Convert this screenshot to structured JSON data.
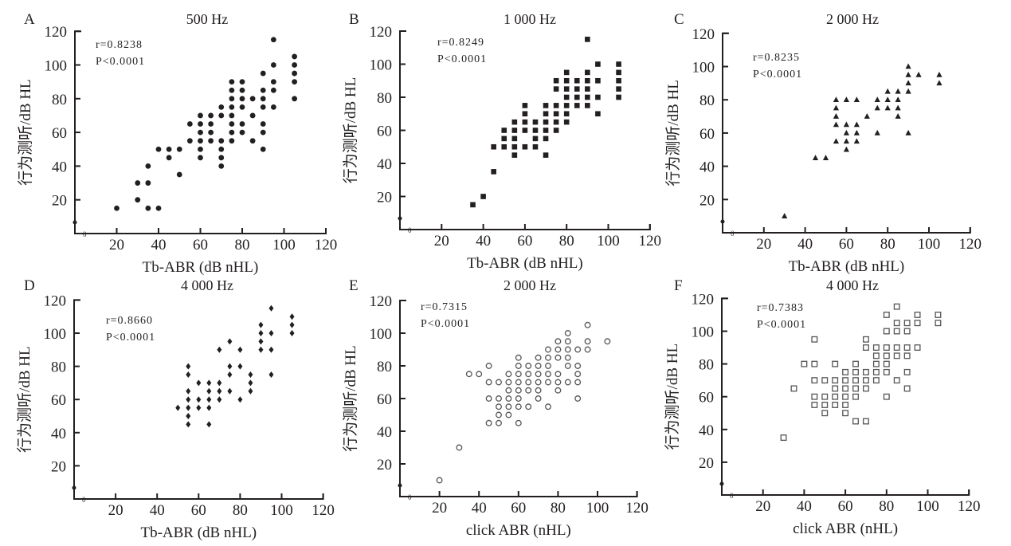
{
  "chart_data": [
    {
      "type": "scatter",
      "panel": "A",
      "title": "500 Hz",
      "xlabel": "Tb-ABR (dB nHL)",
      "ylabel": "行为测听/dB HL",
      "stat_r": "r=0.8238",
      "stat_p": "P<0.0001",
      "marker": "filled-circle",
      "color": "#231f20",
      "xlim": [
        0,
        120
      ],
      "ylim": [
        0,
        120
      ],
      "xticks": [
        20,
        40,
        60,
        80,
        100,
        120
      ],
      "yticks": [
        20,
        40,
        60,
        80,
        100,
        120
      ],
      "points": [
        [
          20,
          15
        ],
        [
          30,
          30
        ],
        [
          30,
          20
        ],
        [
          35,
          40
        ],
        [
          35,
          30
        ],
        [
          35,
          15
        ],
        [
          40,
          50
        ],
        [
          40,
          15
        ],
        [
          45,
          50
        ],
        [
          45,
          45
        ],
        [
          50,
          50
        ],
        [
          50,
          35
        ],
        [
          55,
          65
        ],
        [
          55,
          55
        ],
        [
          60,
          70
        ],
        [
          60,
          65
        ],
        [
          60,
          60
        ],
        [
          60,
          55
        ],
        [
          60,
          50
        ],
        [
          60,
          45
        ],
        [
          65,
          70
        ],
        [
          65,
          65
        ],
        [
          65,
          60
        ],
        [
          65,
          55
        ],
        [
          70,
          75
        ],
        [
          70,
          70
        ],
        [
          70,
          55
        ],
        [
          70,
          50
        ],
        [
          70,
          45
        ],
        [
          70,
          40
        ],
        [
          75,
          90
        ],
        [
          75,
          85
        ],
        [
          75,
          80
        ],
        [
          75,
          75
        ],
        [
          75,
          70
        ],
        [
          75,
          65
        ],
        [
          75,
          60
        ],
        [
          75,
          55
        ],
        [
          80,
          90
        ],
        [
          80,
          85
        ],
        [
          80,
          80
        ],
        [
          80,
          75
        ],
        [
          80,
          65
        ],
        [
          80,
          60
        ],
        [
          85,
          80
        ],
        [
          85,
          70
        ],
        [
          85,
          55
        ],
        [
          90,
          95
        ],
        [
          90,
          85
        ],
        [
          90,
          80
        ],
        [
          90,
          75
        ],
        [
          90,
          65
        ],
        [
          90,
          60
        ],
        [
          90,
          50
        ],
        [
          95,
          115
        ],
        [
          95,
          100
        ],
        [
          95,
          90
        ],
        [
          95,
          85
        ],
        [
          95,
          75
        ],
        [
          105,
          105
        ],
        [
          105,
          100
        ],
        [
          105,
          95
        ],
        [
          105,
          90
        ],
        [
          105,
          80
        ]
      ]
    },
    {
      "type": "scatter",
      "panel": "B",
      "title": "1 000 Hz",
      "xlabel": "Tb-ABR (dB nHL)",
      "ylabel": "行为测听/dB HL",
      "stat_r": "r=0.8249",
      "stat_p": "P<0.0001",
      "marker": "filled-square",
      "color": "#231f20",
      "xlim": [
        0,
        120
      ],
      "ylim": [
        0,
        120
      ],
      "xticks": [
        20,
        40,
        60,
        80,
        100,
        120
      ],
      "yticks": [
        20,
        40,
        60,
        80,
        100,
        120
      ],
      "points": [
        [
          35,
          15
        ],
        [
          40,
          20
        ],
        [
          45,
          35
        ],
        [
          45,
          50
        ],
        [
          50,
          60
        ],
        [
          50,
          55
        ],
        [
          50,
          50
        ],
        [
          55,
          65
        ],
        [
          55,
          60
        ],
        [
          55,
          55
        ],
        [
          55,
          50
        ],
        [
          55,
          45
        ],
        [
          60,
          75
        ],
        [
          60,
          70
        ],
        [
          60,
          65
        ],
        [
          60,
          60
        ],
        [
          60,
          50
        ],
        [
          65,
          65
        ],
        [
          65,
          60
        ],
        [
          65,
          55
        ],
        [
          65,
          50
        ],
        [
          70,
          75
        ],
        [
          70,
          70
        ],
        [
          70,
          65
        ],
        [
          70,
          60
        ],
        [
          70,
          55
        ],
        [
          70,
          45
        ],
        [
          75,
          90
        ],
        [
          75,
          85
        ],
        [
          75,
          75
        ],
        [
          75,
          70
        ],
        [
          75,
          65
        ],
        [
          75,
          60
        ],
        [
          80,
          95
        ],
        [
          80,
          90
        ],
        [
          80,
          85
        ],
        [
          80,
          80
        ],
        [
          80,
          75
        ],
        [
          80,
          70
        ],
        [
          80,
          65
        ],
        [
          85,
          90
        ],
        [
          85,
          85
        ],
        [
          85,
          80
        ],
        [
          85,
          75
        ],
        [
          90,
          115
        ],
        [
          90,
          95
        ],
        [
          90,
          90
        ],
        [
          90,
          85
        ],
        [
          90,
          80
        ],
        [
          90,
          75
        ],
        [
          95,
          100
        ],
        [
          95,
          90
        ],
        [
          95,
          80
        ],
        [
          95,
          70
        ],
        [
          105,
          100
        ],
        [
          105,
          95
        ],
        [
          105,
          90
        ],
        [
          105,
          85
        ],
        [
          105,
          80
        ]
      ]
    },
    {
      "type": "scatter",
      "panel": "C",
      "title": "2 000 Hz",
      "xlabel": "Tb-ABR (dB nHL)",
      "ylabel": "行为测听/dB HL",
      "stat_r": "r=0.8235",
      "stat_p": "P<0.0001",
      "marker": "filled-triangle",
      "color": "#231f20",
      "xlim": [
        0,
        120
      ],
      "ylim": [
        0,
        120
      ],
      "xticks": [
        20,
        40,
        60,
        80,
        100,
        120
      ],
      "yticks": [
        20,
        40,
        60,
        80,
        100,
        120
      ],
      "points": [
        [
          30,
          10
        ],
        [
          45,
          45
        ],
        [
          50,
          45
        ],
        [
          55,
          80
        ],
        [
          55,
          75
        ],
        [
          55,
          70
        ],
        [
          55,
          65
        ],
        [
          55,
          55
        ],
        [
          60,
          80
        ],
        [
          60,
          65
        ],
        [
          60,
          60
        ],
        [
          60,
          55
        ],
        [
          60,
          50
        ],
        [
          65,
          80
        ],
        [
          65,
          65
        ],
        [
          65,
          60
        ],
        [
          65,
          55
        ],
        [
          70,
          70
        ],
        [
          75,
          80
        ],
        [
          75,
          75
        ],
        [
          75,
          60
        ],
        [
          80,
          85
        ],
        [
          80,
          80
        ],
        [
          80,
          75
        ],
        [
          85,
          85
        ],
        [
          85,
          80
        ],
        [
          85,
          75
        ],
        [
          85,
          70
        ],
        [
          90,
          100
        ],
        [
          90,
          95
        ],
        [
          90,
          90
        ],
        [
          90,
          85
        ],
        [
          90,
          60
        ],
        [
          95,
          95
        ],
        [
          105,
          95
        ],
        [
          105,
          90
        ]
      ]
    },
    {
      "type": "scatter",
      "panel": "D",
      "title": "4 000 Hz",
      "xlabel": "Tb-ABR (dB nHL)",
      "ylabel": "行为测听/dB HL",
      "stat_r": "r=0.8660",
      "stat_p": "P<0.0001",
      "marker": "filled-diamond",
      "color": "#231f20",
      "xlim": [
        0,
        120
      ],
      "ylim": [
        0,
        120
      ],
      "xticks": [
        20,
        40,
        60,
        80,
        100,
        120
      ],
      "yticks": [
        20,
        40,
        60,
        80,
        100,
        120
      ],
      "points": [
        [
          50,
          55
        ],
        [
          55,
          80
        ],
        [
          55,
          75
        ],
        [
          55,
          65
        ],
        [
          55,
          60
        ],
        [
          55,
          55
        ],
        [
          55,
          50
        ],
        [
          55,
          45
        ],
        [
          60,
          70
        ],
        [
          60,
          60
        ],
        [
          60,
          55
        ],
        [
          65,
          70
        ],
        [
          65,
          65
        ],
        [
          65,
          60
        ],
        [
          65,
          55
        ],
        [
          65,
          45
        ],
        [
          70,
          90
        ],
        [
          70,
          70
        ],
        [
          70,
          65
        ],
        [
          70,
          60
        ],
        [
          75,
          95
        ],
        [
          75,
          80
        ],
        [
          75,
          75
        ],
        [
          75,
          65
        ],
        [
          80,
          90
        ],
        [
          80,
          80
        ],
        [
          80,
          60
        ],
        [
          85,
          75
        ],
        [
          85,
          70
        ],
        [
          85,
          65
        ],
        [
          90,
          105
        ],
        [
          90,
          100
        ],
        [
          90,
          95
        ],
        [
          90,
          90
        ],
        [
          95,
          115
        ],
        [
          95,
          100
        ],
        [
          95,
          90
        ],
        [
          95,
          75
        ],
        [
          105,
          110
        ],
        [
          105,
          105
        ],
        [
          105,
          100
        ]
      ]
    },
    {
      "type": "scatter",
      "panel": "E",
      "title": "2 000 Hz",
      "xlabel": "click ABR (nHL)",
      "ylabel": "行为测听/dB HL",
      "stat_r": "r=0.7315",
      "stat_p": "P<0.0001",
      "marker": "open-circle",
      "color": "#555555",
      "xlim": [
        0,
        120
      ],
      "ylim": [
        0,
        120
      ],
      "xticks": [
        20,
        40,
        60,
        80,
        100,
        120
      ],
      "yticks": [
        20,
        40,
        60,
        80,
        100,
        120
      ],
      "points": [
        [
          20,
          10
        ],
        [
          30,
          30
        ],
        [
          35,
          75
        ],
        [
          40,
          75
        ],
        [
          45,
          80
        ],
        [
          45,
          70
        ],
        [
          45,
          60
        ],
        [
          45,
          45
        ],
        [
          50,
          70
        ],
        [
          50,
          60
        ],
        [
          50,
          55
        ],
        [
          50,
          50
        ],
        [
          50,
          45
        ],
        [
          55,
          75
        ],
        [
          55,
          70
        ],
        [
          55,
          65
        ],
        [
          55,
          60
        ],
        [
          55,
          55
        ],
        [
          55,
          50
        ],
        [
          60,
          85
        ],
        [
          60,
          80
        ],
        [
          60,
          75
        ],
        [
          60,
          70
        ],
        [
          60,
          65
        ],
        [
          60,
          60
        ],
        [
          60,
          55
        ],
        [
          60,
          45
        ],
        [
          65,
          80
        ],
        [
          65,
          75
        ],
        [
          65,
          70
        ],
        [
          65,
          65
        ],
        [
          65,
          55
        ],
        [
          70,
          85
        ],
        [
          70,
          80
        ],
        [
          70,
          75
        ],
        [
          70,
          70
        ],
        [
          70,
          65
        ],
        [
          70,
          60
        ],
        [
          75,
          90
        ],
        [
          75,
          85
        ],
        [
          75,
          80
        ],
        [
          75,
          75
        ],
        [
          75,
          70
        ],
        [
          75,
          55
        ],
        [
          80,
          95
        ],
        [
          80,
          90
        ],
        [
          80,
          85
        ],
        [
          80,
          75
        ],
        [
          80,
          70
        ],
        [
          80,
          65
        ],
        [
          85,
          100
        ],
        [
          85,
          95
        ],
        [
          85,
          90
        ],
        [
          85,
          85
        ],
        [
          85,
          80
        ],
        [
          85,
          70
        ],
        [
          90,
          90
        ],
        [
          90,
          80
        ],
        [
          90,
          75
        ],
        [
          90,
          70
        ],
        [
          90,
          60
        ],
        [
          95,
          105
        ],
        [
          95,
          95
        ],
        [
          95,
          90
        ],
        [
          105,
          95
        ]
      ]
    },
    {
      "type": "scatter",
      "panel": "F",
      "title": "4 000 Hz",
      "xlabel": "click ABR (nHL)",
      "ylabel": "行为测听/dB HL",
      "stat_r": "r=0.7383",
      "stat_p": "P<0.0001",
      "marker": "open-square",
      "color": "#555555",
      "xlim": [
        0,
        120
      ],
      "ylim": [
        0,
        120
      ],
      "xticks": [
        20,
        40,
        60,
        80,
        100,
        120
      ],
      "yticks": [
        20,
        40,
        60,
        80,
        100,
        120
      ],
      "points": [
        [
          30,
          35
        ],
        [
          35,
          65
        ],
        [
          40,
          80
        ],
        [
          45,
          95
        ],
        [
          45,
          80
        ],
        [
          45,
          70
        ],
        [
          45,
          60
        ],
        [
          45,
          55
        ],
        [
          50,
          70
        ],
        [
          50,
          60
        ],
        [
          50,
          55
        ],
        [
          50,
          50
        ],
        [
          55,
          80
        ],
        [
          55,
          70
        ],
        [
          55,
          65
        ],
        [
          55,
          60
        ],
        [
          55,
          55
        ],
        [
          60,
          75
        ],
        [
          60,
          70
        ],
        [
          60,
          65
        ],
        [
          60,
          60
        ],
        [
          60,
          55
        ],
        [
          60,
          50
        ],
        [
          65,
          80
        ],
        [
          65,
          75
        ],
        [
          65,
          70
        ],
        [
          65,
          65
        ],
        [
          65,
          60
        ],
        [
          65,
          45
        ],
        [
          70,
          95
        ],
        [
          70,
          90
        ],
        [
          70,
          75
        ],
        [
          70,
          70
        ],
        [
          70,
          65
        ],
        [
          70,
          45
        ],
        [
          75,
          90
        ],
        [
          75,
          85
        ],
        [
          75,
          80
        ],
        [
          75,
          75
        ],
        [
          75,
          70
        ],
        [
          80,
          110
        ],
        [
          80,
          100
        ],
        [
          80,
          90
        ],
        [
          80,
          85
        ],
        [
          80,
          80
        ],
        [
          80,
          75
        ],
        [
          80,
          60
        ],
        [
          85,
          115
        ],
        [
          85,
          105
        ],
        [
          85,
          100
        ],
        [
          85,
          90
        ],
        [
          85,
          85
        ],
        [
          85,
          70
        ],
        [
          90,
          105
        ],
        [
          90,
          100
        ],
        [
          90,
          90
        ],
        [
          90,
          85
        ],
        [
          90,
          75
        ],
        [
          90,
          65
        ],
        [
          95,
          110
        ],
        [
          95,
          105
        ],
        [
          95,
          90
        ],
        [
          105,
          110
        ],
        [
          105,
          105
        ]
      ]
    }
  ],
  "origin_label": "0"
}
